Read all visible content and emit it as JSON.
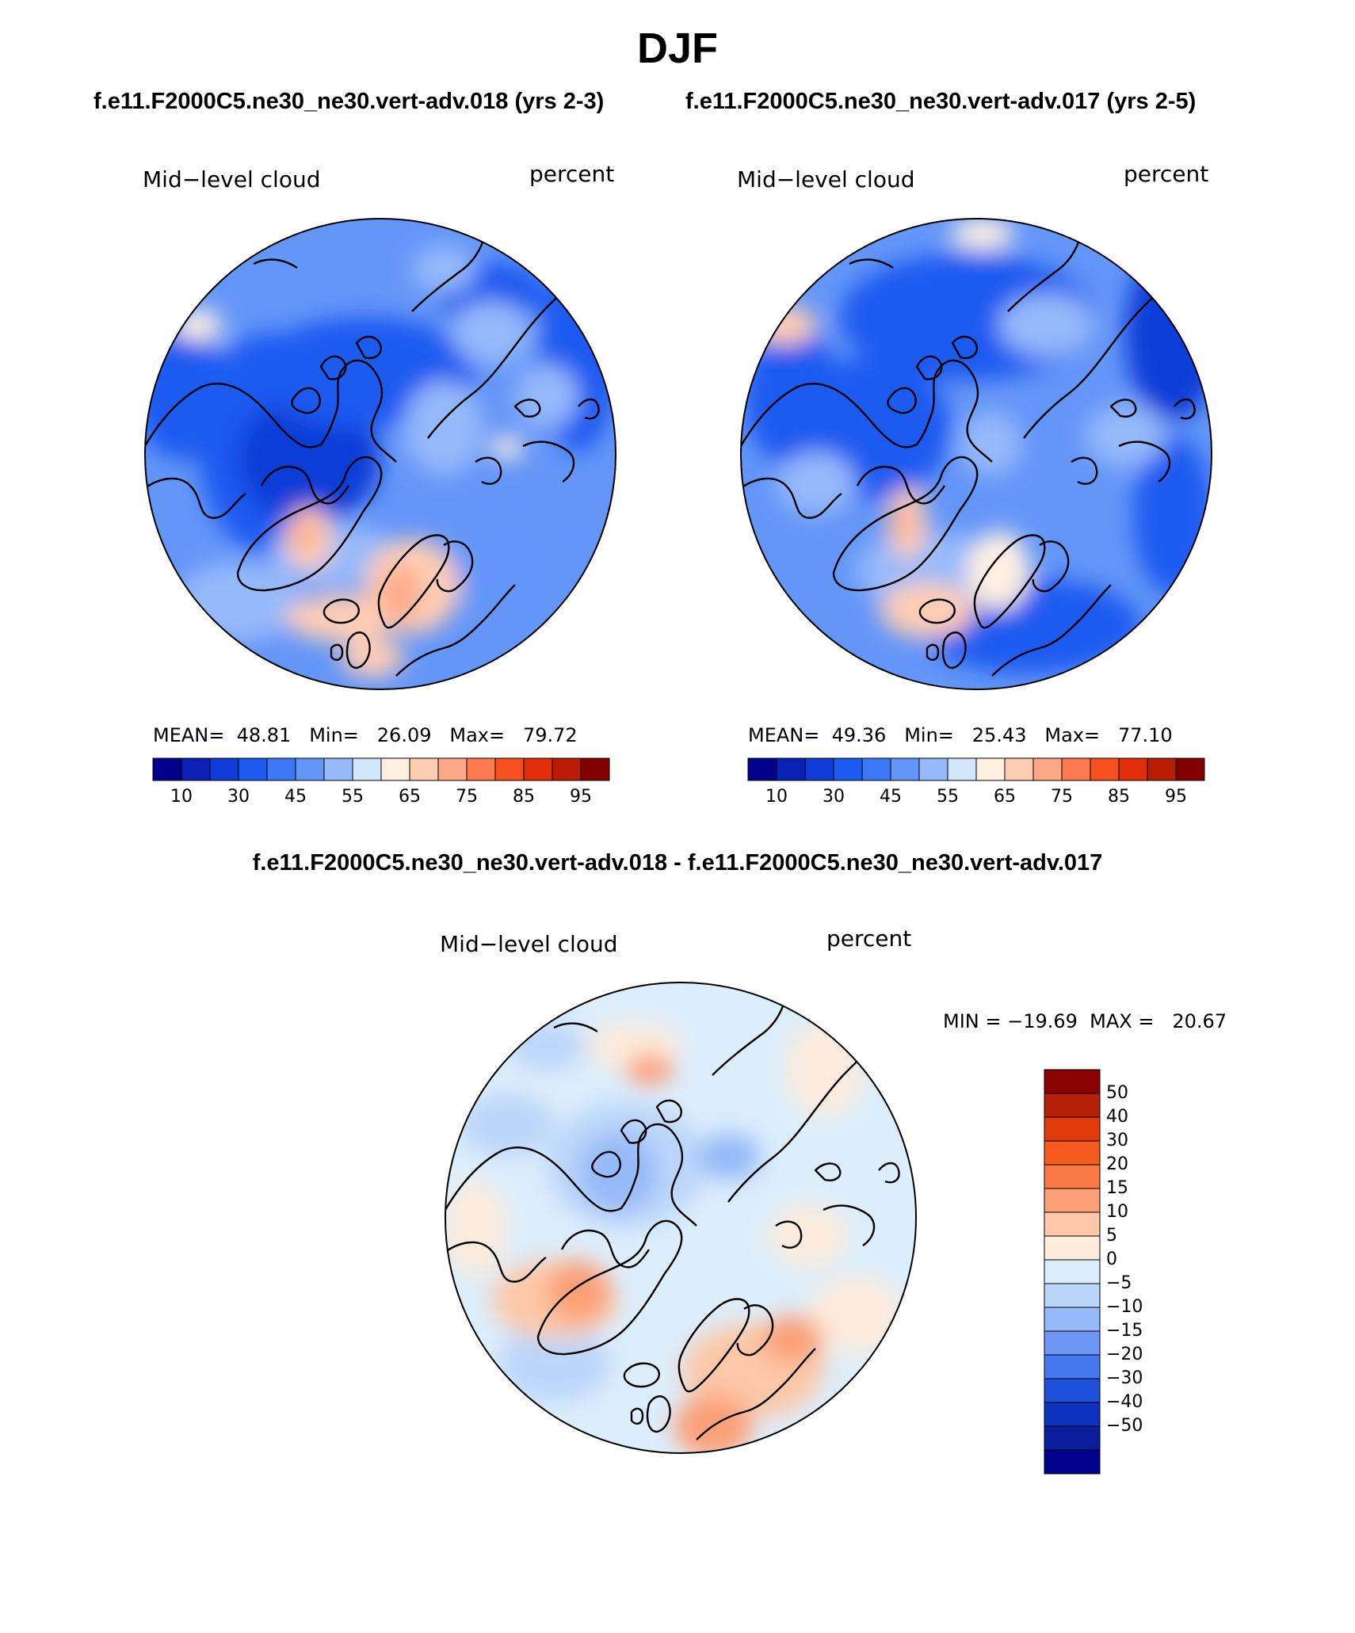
{
  "figure": {
    "season": "DJF",
    "case_title_left": "f.e11.F2000C5.ne30_ne30.vert-adv.018 (yrs 2-3)",
    "case_title_right": "f.e11.F2000C5.ne30_ne30.vert-adv.017 (yrs 2-5)",
    "diff_title": "f.e11.F2000C5.ne30_ne30.vert-adv.018 - f.e11.F2000C5.ne30_ne30.vert-adv.017"
  },
  "panels": {
    "left": {
      "variable": "Mid−level cloud",
      "units": "percent",
      "stats_line": "MEAN=  48.81   Min=   26.09   Max=   79.72"
    },
    "right": {
      "variable": "Mid−level cloud",
      "units": "percent",
      "stats_line": "MEAN=  49.36   Min=   25.43   Max=   77.10"
    },
    "diff": {
      "variable": "Mid−level cloud",
      "units": "percent",
      "minmax_line": "MIN = −19.69  MAX =   20.67"
    }
  },
  "colorbars": {
    "abs": {
      "colors": [
        "#00008b",
        "#0a1fb4",
        "#0f3cd7",
        "#1e5af0",
        "#3c78f5",
        "#6496f8",
        "#96b9fa",
        "#d2e6fc",
        "#fff0e1",
        "#ffcdb4",
        "#ffa887",
        "#ff7a50",
        "#f5501e",
        "#e12d0a",
        "#b91e05",
        "#820000"
      ],
      "ticks": [
        "10",
        "30",
        "45",
        "55",
        "65",
        "75",
        "85",
        "95"
      ]
    },
    "diff": {
      "colors_top_to_bottom": [
        "#8b0000",
        "#b4200a",
        "#e03c0a",
        "#f55a1e",
        "#fa7a46",
        "#fca078",
        "#fcc8a8",
        "#fdebdc",
        "#dceefc",
        "#bcd6fa",
        "#96b9f8",
        "#6e96f5",
        "#4678f0",
        "#1e50dc",
        "#0f32be",
        "#0a1e9b",
        "#00008c"
      ],
      "ticks": [
        "50",
        "40",
        "30",
        "20",
        "15",
        "10",
        "5",
        "0",
        "−5",
        "−10",
        "−15",
        "−20",
        "−30",
        "−40",
        "−50"
      ]
    }
  },
  "chart_data": [
    {
      "type": "heatmap",
      "title": "Mid−level cloud",
      "units": "percent",
      "case": "f.e11.F2000C5.ne30_ne30.vert-adv.018 (yrs 2-3)",
      "season": "DJF",
      "projection": "north polar stereographic",
      "mean": 48.81,
      "min": 26.09,
      "max": 79.72,
      "levels": [
        10,
        20,
        30,
        40,
        45,
        50,
        55,
        60,
        65,
        70,
        75,
        80,
        85,
        90,
        95
      ]
    },
    {
      "type": "heatmap",
      "title": "Mid−level cloud",
      "units": "percent",
      "case": "f.e11.F2000C5.ne30_ne30.vert-adv.017 (yrs 2-5)",
      "season": "DJF",
      "projection": "north polar stereographic",
      "mean": 49.36,
      "min": 25.43,
      "max": 77.1,
      "levels": [
        10,
        20,
        30,
        40,
        45,
        50,
        55,
        60,
        65,
        70,
        75,
        80,
        85,
        90,
        95
      ]
    },
    {
      "type": "heatmap",
      "title": "Mid−level cloud",
      "units": "percent",
      "case": "f.e11.F2000C5.ne30_ne30.vert-adv.018 - f.e11.F2000C5.ne30_ne30.vert-adv.017",
      "season": "DJF",
      "projection": "north polar stereographic",
      "min": -19.69,
      "max": 20.67,
      "levels": [
        -50,
        -40,
        -30,
        -20,
        -15,
        -10,
        -5,
        0,
        5,
        10,
        15,
        20,
        30,
        40,
        50
      ]
    }
  ]
}
